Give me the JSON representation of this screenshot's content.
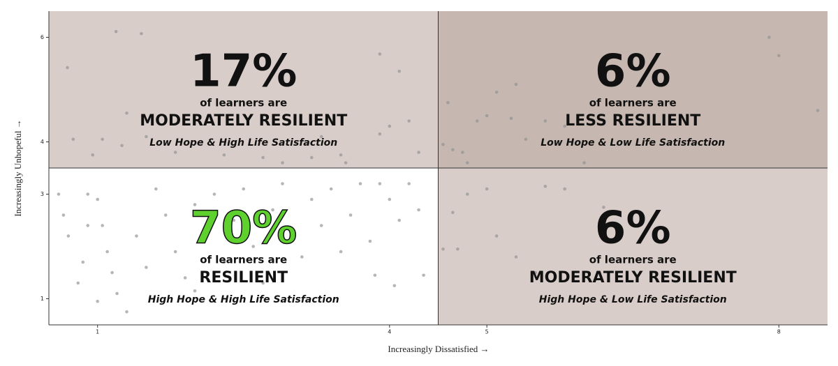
{
  "chart_data": {
    "type": "scatter",
    "x_label": "Increasingly Dissatisfied →",
    "y_label": "Increasingly Unhopeful →",
    "xlim": [
      0.5,
      8.5
    ],
    "ylim": [
      0.5,
      6.5
    ],
    "xticks": [
      1,
      4,
      5,
      8
    ],
    "yticks": [
      1,
      3,
      4,
      6
    ],
    "xsplit": 4.5,
    "ysplit": 3.5,
    "point_color": "#8f8f8f",
    "x": [
      0.69,
      1.19,
      1.45,
      0.75,
      1.05,
      1.5,
      1.25,
      0.95,
      1.8,
      2.3,
      2.7,
      3.2,
      3.5,
      3.9,
      4.0,
      4.2,
      3.9,
      4.1,
      3.3,
      2.9,
      1.3,
      3.55,
      4.3,
      5.1,
      5.3,
      4.6,
      4.9,
      5.0,
      5.25,
      5.4,
      5.8,
      6.0,
      4.75,
      4.55,
      4.8,
      7.9,
      8.0,
      8.4,
      5.6,
      4.65,
      0.6,
      0.65,
      0.7,
      0.8,
      0.85,
      0.9,
      1.0,
      1.05,
      1.1,
      1.15,
      1.2,
      1.3,
      1.4,
      1.5,
      1.6,
      1.7,
      1.8,
      1.9,
      2.0,
      2.1,
      2.2,
      2.3,
      2.4,
      2.5,
      2.6,
      2.7,
      2.8,
      2.9,
      3.0,
      3.1,
      3.2,
      3.3,
      3.4,
      3.5,
      3.6,
      3.7,
      3.8,
      3.9,
      4.0,
      4.1,
      4.2,
      4.3,
      3.85,
      4.35,
      4.05,
      2.0,
      1.0,
      0.9,
      4.55,
      4.7,
      4.65,
      5.1,
      5.3,
      5.5,
      5.8,
      6.2,
      5.6,
      4.8,
      5.0
    ],
    "y": [
      5.42,
      6.11,
      6.07,
      4.05,
      4.05,
      4.1,
      3.93,
      3.75,
      3.8,
      3.75,
      3.7,
      3.7,
      3.75,
      4.15,
      4.3,
      4.4,
      5.68,
      5.35,
      4.1,
      3.6,
      4.55,
      3.6,
      3.8,
      4.95,
      5.1,
      4.75,
      4.4,
      4.5,
      4.45,
      4.05,
      4.3,
      3.6,
      3.8,
      3.95,
      3.6,
      6.0,
      5.65,
      4.6,
      4.4,
      3.85,
      3.0,
      2.6,
      2.2,
      1.3,
      1.7,
      2.4,
      2.9,
      2.4,
      1.9,
      1.5,
      1.1,
      0.75,
      2.2,
      1.6,
      3.1,
      2.6,
      1.9,
      1.4,
      2.8,
      2.3,
      3.0,
      1.7,
      2.5,
      3.1,
      2.0,
      1.3,
      2.7,
      3.2,
      2.2,
      1.8,
      2.9,
      2.4,
      3.1,
      1.9,
      2.6,
      3.2,
      2.1,
      3.2,
      2.9,
      2.5,
      3.2,
      2.7,
      1.45,
      1.45,
      1.25,
      1.15,
      0.95,
      3.0,
      1.95,
      1.95,
      2.65,
      2.2,
      1.8,
      1.5,
      3.1,
      2.75,
      3.15,
      3.0,
      3.1
    ],
    "quadrants": {
      "values": [
        17,
        6,
        70,
        6
      ],
      "value_labels": [
        "17%",
        "6%",
        "70%",
        "6%"
      ],
      "lines": [
        "of learners are",
        "of learners are",
        "of learners are",
        "of learners are"
      ],
      "categories": [
        "MODERATELY RESILIENT",
        "LESS RESILIENT",
        "RESILIENT",
        "MODERATELY RESILIENT"
      ],
      "descriptions": [
        "Low Hope & High Life Satisfaction",
        "Low Hope & Low Life Satisfaction",
        "High Hope & High Life Satisfaction",
        "High Hope & Low Life Satisfaction"
      ],
      "colors": [
        "#d9cdc9",
        "#c6b8b1",
        "#ffffff",
        "#d9cdc9"
      ],
      "label_colors": [
        "#111111",
        "#111111",
        "#5fd12e",
        "#111111"
      ]
    }
  }
}
